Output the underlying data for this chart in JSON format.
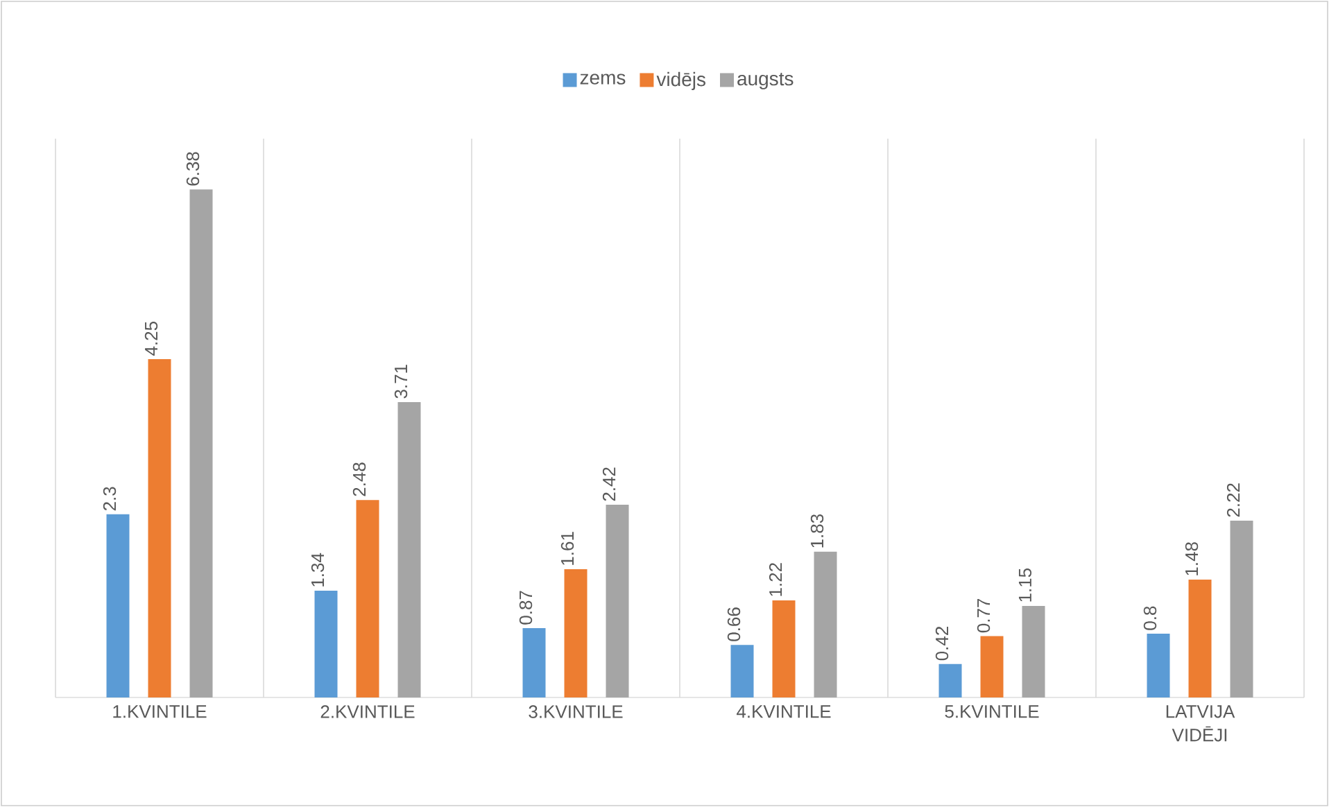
{
  "chart_data": {
    "type": "bar",
    "categories": [
      "1.KVINTILE",
      "2.KVINTILE",
      "3.KVINTILE",
      "4.KVINTILE",
      "5.KVINTILE",
      "LATVIJA VIDĒJI"
    ],
    "series": [
      {
        "name": "zems",
        "color": "#5b9bd5",
        "values": [
          2.3,
          1.34,
          0.87,
          0.66,
          0.42,
          0.8
        ]
      },
      {
        "name": "vidējs",
        "color": "#ed7d31",
        "values": [
          4.25,
          2.48,
          1.61,
          1.22,
          0.77,
          1.48
        ]
      },
      {
        "name": "augsts",
        "color": "#a5a5a5",
        "values": [
          6.38,
          3.71,
          2.42,
          1.83,
          1.15,
          2.22
        ]
      }
    ],
    "data_labels": true,
    "grid": "x",
    "legend": "top"
  }
}
